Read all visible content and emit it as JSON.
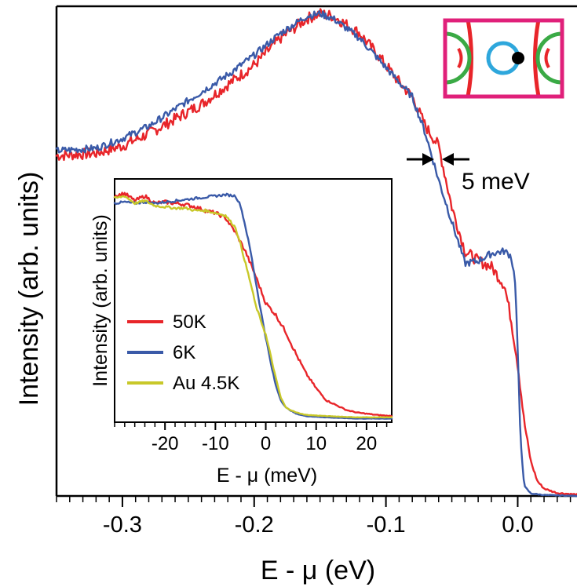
{
  "colors": {
    "series_50K": "#e8252a",
    "series_6K": "#3a5aa8",
    "series_Au": "#c8c829",
    "bz_border": "#e0207a",
    "fs_red": "#e8252a",
    "fs_green": "#3aaa45",
    "fs_blue": "#2ea7dc",
    "axis": "#000000"
  },
  "chart_data": [
    {
      "type": "line",
      "title": "",
      "xlabel": "E - μ (eV)",
      "ylabel": "Intensity (arb. units)",
      "xlim": [
        -0.35,
        0.045
      ],
      "ylim": [
        0,
        1.0
      ],
      "x_ticks": [
        -0.3,
        -0.2,
        -0.1,
        0.0
      ],
      "x_tick_labels": [
        "-0.3",
        "-0.2",
        "-0.1",
        "0.0"
      ],
      "x_minor_step": 0.01,
      "y_ticks_shown": false,
      "series": [
        {
          "name": "50K",
          "color": "#e8252a",
          "x": [
            -0.35,
            -0.32,
            -0.3,
            -0.28,
            -0.26,
            -0.24,
            -0.22,
            -0.2,
            -0.18,
            -0.16,
            -0.15,
            -0.14,
            -0.12,
            -0.1,
            -0.09,
            -0.08,
            -0.07,
            -0.06,
            -0.05,
            -0.04,
            -0.03,
            -0.02,
            -0.01,
            -0.005,
            0.0,
            0.005,
            0.01,
            0.015,
            0.02,
            0.03,
            0.045
          ],
          "y": [
            0.695,
            0.7,
            0.715,
            0.74,
            0.77,
            0.8,
            0.84,
            0.88,
            0.935,
            0.975,
            0.985,
            0.98,
            0.945,
            0.88,
            0.845,
            0.815,
            0.755,
            0.715,
            0.59,
            0.5,
            0.48,
            0.468,
            0.43,
            0.36,
            0.27,
            0.15,
            0.07,
            0.03,
            0.015,
            0.006,
            0.003
          ]
        },
        {
          "name": "6K",
          "color": "#3a5aa8",
          "x": [
            -0.35,
            -0.32,
            -0.3,
            -0.28,
            -0.26,
            -0.24,
            -0.22,
            -0.2,
            -0.18,
            -0.16,
            -0.15,
            -0.14,
            -0.12,
            -0.1,
            -0.09,
            -0.08,
            -0.07,
            -0.06,
            -0.05,
            -0.04,
            -0.03,
            -0.02,
            -0.01,
            -0.005,
            -0.002,
            0.0,
            0.002,
            0.005,
            0.01,
            0.02,
            0.045
          ],
          "y": [
            0.705,
            0.71,
            0.73,
            0.755,
            0.79,
            0.825,
            0.86,
            0.9,
            0.945,
            0.98,
            0.985,
            0.975,
            0.935,
            0.875,
            0.845,
            0.815,
            0.74,
            0.645,
            0.56,
            0.475,
            0.48,
            0.495,
            0.5,
            0.49,
            0.44,
            0.3,
            0.12,
            0.02,
            0.005,
            0.002,
            0.0
          ]
        }
      ],
      "annotations": [
        {
          "text": "5 meV"
        }
      ]
    },
    {
      "type": "line",
      "title": "",
      "xlabel": "E - μ (meV)",
      "ylabel": "Intensity (arb. units)",
      "xlim": [
        -30,
        25
      ],
      "ylim": [
        0,
        1.0
      ],
      "x_ticks": [
        -20,
        -10,
        0,
        10,
        20
      ],
      "x_tick_labels": [
        "-20",
        "-10",
        "0",
        "10",
        "20"
      ],
      "x_minor_step": 2,
      "legend_position": "lower-left",
      "series": [
        {
          "name": "50K",
          "color": "#e8252a",
          "x": [
            -30,
            -28,
            -26,
            -24,
            -22,
            -20,
            -18,
            -16,
            -14,
            -12,
            -10,
            -8,
            -6,
            -4,
            -2,
            0,
            2,
            4,
            6,
            8,
            10,
            12,
            14,
            16,
            18,
            20,
            22,
            25
          ],
          "y": [
            0.93,
            0.94,
            0.91,
            0.93,
            0.9,
            0.905,
            0.9,
            0.895,
            0.885,
            0.87,
            0.86,
            0.84,
            0.78,
            0.7,
            0.6,
            0.49,
            0.44,
            0.37,
            0.28,
            0.2,
            0.14,
            0.09,
            0.07,
            0.05,
            0.04,
            0.035,
            0.03,
            0.025
          ]
        },
        {
          "name": "6K",
          "color": "#3a5aa8",
          "x": [
            -30,
            -28,
            -26,
            -24,
            -22,
            -20,
            -18,
            -16,
            -14,
            -12,
            -10,
            -8,
            -6,
            -5,
            -4,
            -3,
            -2,
            -1,
            0,
            1,
            2,
            3,
            4,
            6,
            8,
            12,
            18,
            25
          ],
          "y": [
            0.9,
            0.905,
            0.9,
            0.905,
            0.9,
            0.905,
            0.91,
            0.915,
            0.92,
            0.925,
            0.93,
            0.935,
            0.93,
            0.89,
            0.8,
            0.7,
            0.58,
            0.46,
            0.35,
            0.24,
            0.15,
            0.09,
            0.06,
            0.035,
            0.025,
            0.02,
            0.015,
            0.015
          ]
        },
        {
          "name": "Au 4.5K",
          "color": "#c8c829",
          "x": [
            -30,
            -28,
            -26,
            -24,
            -22,
            -20,
            -18,
            -16,
            -14,
            -12,
            -10,
            -8,
            -6,
            -5,
            -4,
            -3,
            -2,
            -1,
            0,
            1,
            2,
            3,
            4,
            6,
            8,
            12,
            18,
            25
          ],
          "y": [
            0.92,
            0.93,
            0.9,
            0.91,
            0.89,
            0.885,
            0.88,
            0.88,
            0.87,
            0.87,
            0.86,
            0.85,
            0.8,
            0.73,
            0.65,
            0.57,
            0.48,
            0.42,
            0.36,
            0.27,
            0.18,
            0.1,
            0.06,
            0.04,
            0.03,
            0.025,
            0.02,
            0.02
          ]
        }
      ]
    }
  ]
}
